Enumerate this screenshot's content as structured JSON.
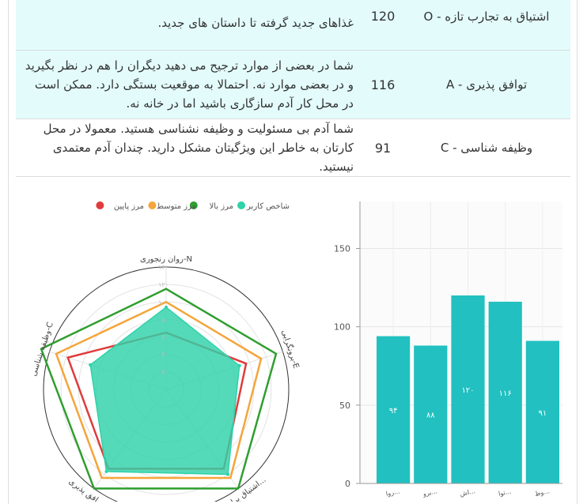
{
  "table": {
    "rows": [
      {
        "name": "اشتیاق به تجارب تازه - O",
        "score": "120",
        "description": "غذاهای جدید گرفته تا داستان های جدید."
      },
      {
        "name": "توافق پذیری - A",
        "score": "116",
        "description": "شما در بعضی از موارد ترجیح می دهید دیگران را هم در نظر بگیرید و در بعضی موارد نه. احتمالا به موقعیت بستگی دارد. ممکن است در محل کار آدم سازگاری باشید اما در خانه نه."
      },
      {
        "name": "وظیفه شناسی - C",
        "score": "91",
        "description": "شما آدم بی مسئولیت و وظیفه نشناسی هستید. معمولا در محل کارتان به خاطر این ویژگیتان مشکل دارید. چندان آدم معتمدی نیستید."
      }
    ]
  },
  "colors": {
    "user": "#2fd2a9",
    "upper": "#2f9e2f",
    "mid": "#f5a53a",
    "lower": "#e03b3b",
    "bar": "#22c0c0"
  },
  "chart_data": [
    {
      "type": "radar",
      "legend": [
        "شاخص کاربر",
        "مرز بالا",
        "مرز متوسط",
        "مرز پایین"
      ],
      "legend_position": "top",
      "axes": [
        "روان رنجوری-N",
        "برونگرایی-E",
        "اشتیاق برای ج...",
        "توافق پذیری-A",
        "وظیفه شناسی-C"
      ],
      "r_ticks": [
        "۲۰",
        "۴۰",
        "۶۰",
        "۸۰",
        "۱۰۰",
        "۱۲۰",
        "۱۴۰"
      ],
      "r_range": [
        0,
        140
      ],
      "series": [
        {
          "name": "شاخص کاربر",
          "values": [
            94,
            88,
            120,
            116,
            91
          ]
        },
        {
          "name": "مرز بالا",
          "values": [
            115,
            132,
            140,
            140,
            150
          ]
        },
        {
          "name": "مرز متوسط",
          "values": [
            100,
            114,
            125,
            125,
            132
          ]
        },
        {
          "name": "مرز پایین",
          "values": [
            65,
            96,
            112,
            112,
            118
          ]
        }
      ]
    },
    {
      "type": "bar",
      "categories": [
        "روا...",
        "برو...",
        "اش...",
        "توا...",
        "وظ..."
      ],
      "values": [
        94,
        88,
        120,
        116,
        91
      ],
      "value_labels": [
        "۹۴",
        "۸۸",
        "۱۲۰",
        "۱۱۶",
        "۹۱"
      ],
      "y_ticks": [
        "0",
        "50",
        "100",
        "150"
      ],
      "ylim": [
        0,
        180
      ],
      "grid": true
    }
  ]
}
